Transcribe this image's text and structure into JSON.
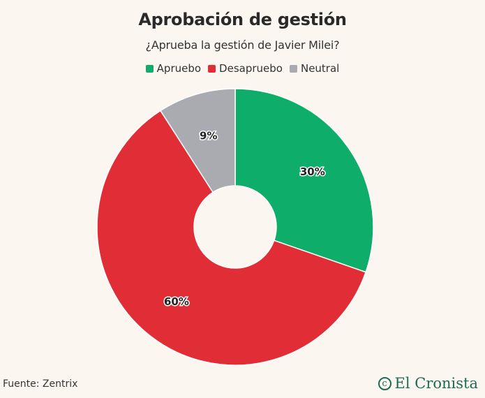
{
  "chart_data": {
    "type": "pie",
    "title": "Aprobación de gestión",
    "subtitle": "¿Aprueba la gestión de Javier Milei?",
    "categories": [
      "Apruebo",
      "Desapruebo",
      "Neutral"
    ],
    "values": [
      30,
      60,
      9
    ],
    "labels": [
      "30%",
      "60%",
      "9%"
    ],
    "colors": [
      "#0ead69",
      "#e02d36",
      "#a9abb0"
    ],
    "legend_position": "top-center",
    "donut": true
  },
  "footer": {
    "source": "Fuente: Zentrix",
    "brand": "El Cronista",
    "brand_icon": "copyright-style-logo-icon"
  }
}
